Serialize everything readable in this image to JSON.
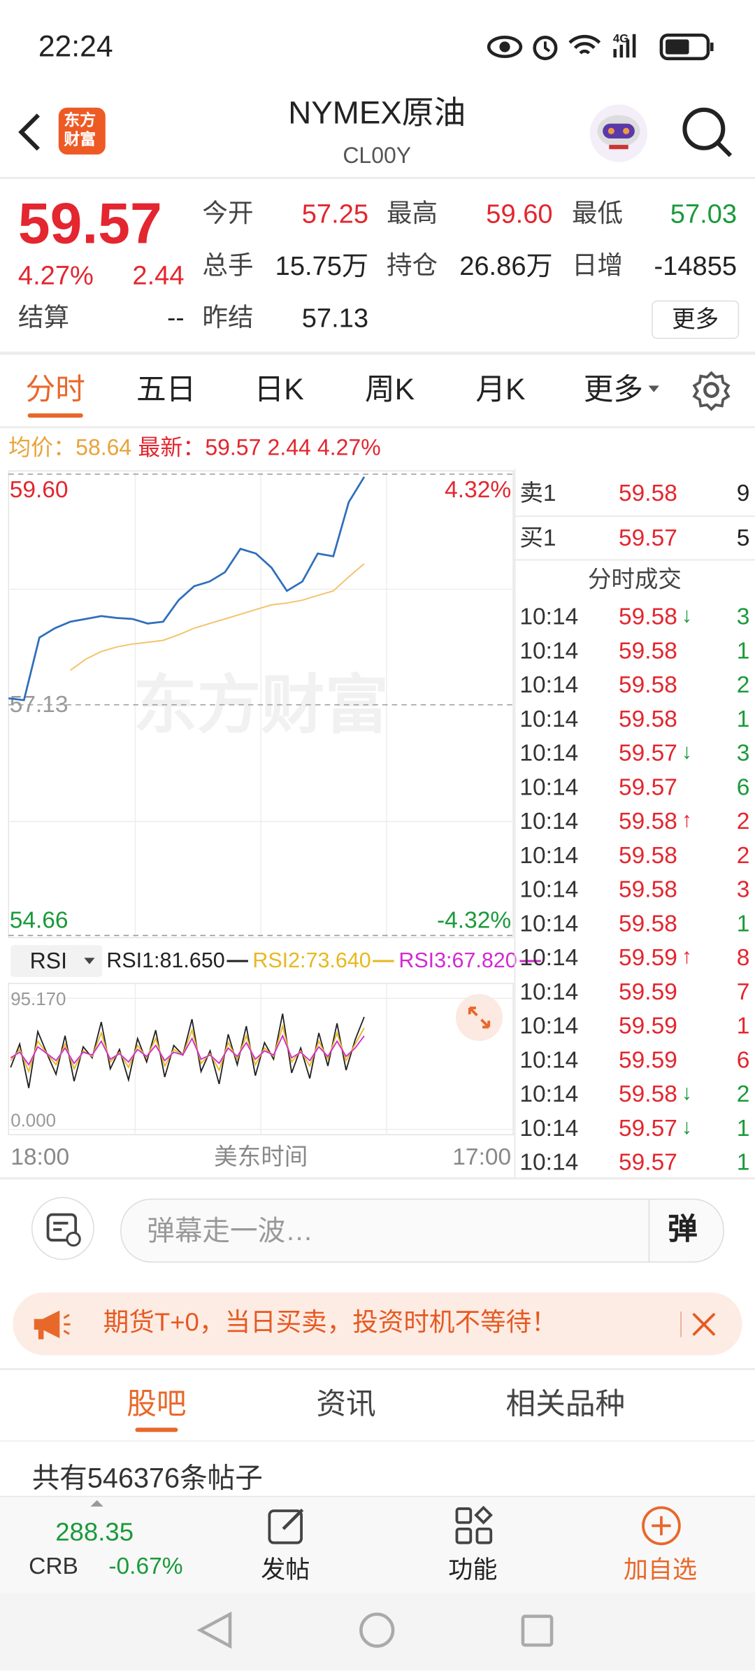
{
  "status_bar": {
    "time": "22:24",
    "network": "4G"
  },
  "header": {
    "logo": [
      "东方",
      "财富"
    ],
    "title": "NYMEX原油",
    "code": "CL00Y"
  },
  "quote": {
    "price": "59.57",
    "change_pct": "4.27%",
    "change": "2.44",
    "settlement": {
      "label": "结算",
      "value": "--"
    },
    "open": {
      "label": "今开",
      "value": "57.25"
    },
    "high": {
      "label": "最高",
      "value": "59.60"
    },
    "low": {
      "label": "最低",
      "value": "57.03"
    },
    "volume": {
      "label": "总手",
      "value": "15.75万"
    },
    "open_interest": {
      "label": "持仓",
      "value": "26.86万"
    },
    "daily_change": {
      "label": "日增",
      "value": "-14855"
    },
    "prev_settlement": {
      "label": "昨结",
      "value": "57.13"
    },
    "more": "更多"
  },
  "tabs": {
    "items": [
      "分时",
      "五日",
      "日K",
      "周K",
      "月K",
      "更多"
    ],
    "active": 0
  },
  "summary": {
    "avg_label": "均价：",
    "avg": "58.64",
    "last_label": "最新：",
    "last": "59.57",
    "change": "2.44",
    "change_pct": "4.27%"
  },
  "price_chart": {
    "type": "line",
    "watermark": "东方财富",
    "series": [
      {
        "color": "#2f6fba",
        "values": [
          57.2,
          57.18,
          57.85,
          57.95,
          58.02,
          58.05,
          58.08,
          58.06,
          58.05,
          58.0,
          58.02,
          58.25,
          58.4,
          58.45,
          58.55,
          58.8,
          58.75,
          58.6,
          58.35,
          58.45,
          58.75,
          58.72,
          59.3,
          59.57
        ]
      },
      {
        "color": "#f2c46b",
        "values": [
          null,
          null,
          null,
          null,
          57.5,
          57.62,
          57.7,
          57.75,
          57.78,
          57.8,
          57.82,
          57.88,
          57.95,
          58.0,
          58.05,
          58.1,
          58.15,
          58.2,
          58.22,
          58.25,
          58.3,
          58.35,
          58.5,
          58.64
        ]
      }
    ],
    "ylim": [
      54.66,
      59.6
    ],
    "yticks": [
      {
        "value": 59.6,
        "label": "59.60"
      },
      57.13,
      54.66
    ],
    "y2lim": [
      -4.32,
      4.32
    ],
    "y2ticks": [
      {
        "value": 4.32,
        "label": "4.32%"
      },
      {
        "value": -4.32,
        "label": "-4.32%"
      }
    ]
  },
  "rsi_chart": {
    "type": "line",
    "indicator": "RSI",
    "series": [
      {
        "name": "RSI1:81.650",
        "color": "#222222",
        "values": [
          45,
          62,
          30,
          71,
          55,
          40,
          68,
          35,
          60,
          52,
          78,
          44,
          58,
          36,
          66,
          49,
          72,
          38,
          61,
          54,
          80,
          42,
          57,
          33,
          69,
          47,
          75,
          39,
          63,
          51,
          84,
          41,
          59,
          37,
          70,
          46,
          77,
          43,
          65,
          81.65
        ]
      },
      {
        "name": "RSI2:73.640",
        "color": "#e8b820",
        "values": [
          50,
          58,
          42,
          64,
          55,
          47,
          62,
          44,
          57,
          53,
          70,
          49,
          56,
          45,
          61,
          52,
          66,
          46,
          58,
          54,
          72,
          48,
          55,
          43,
          63,
          51,
          68,
          47,
          59,
          53,
          75,
          49,
          57,
          46,
          64,
          51,
          70,
          50,
          62,
          73.64
        ]
      },
      {
        "name": "RSI3:67.820",
        "color": "#d22ad2",
        "values": [
          52,
          56,
          47,
          60,
          55,
          50,
          59,
          48,
          56,
          54,
          64,
          51,
          55,
          49,
          58,
          53,
          61,
          50,
          56,
          54,
          66,
          51,
          54,
          48,
          59,
          53,
          63,
          51,
          57,
          54,
          68,
          52,
          56,
          50,
          60,
          53,
          64,
          53,
          59,
          67.82
        ]
      }
    ],
    "ylim": [
      0,
      95.17
    ],
    "yticks": [
      {
        "value": 95.17,
        "label": "95.170"
      },
      {
        "value": 0,
        "label": "0.000"
      }
    ]
  },
  "time_axis": {
    "start": "18:00",
    "label": "美东时间",
    "end": "17:00"
  },
  "order_book": [
    {
      "side": "卖1",
      "price": "59.58",
      "volume": "9"
    },
    {
      "side": "买1",
      "price": "59.57",
      "volume": "5"
    }
  ],
  "trades_title": "分时成交",
  "trades": [
    {
      "time": "10:14",
      "price": "59.58",
      "arrow": "↓",
      "arrow_color": "green",
      "volume": "3",
      "volume_color": "green"
    },
    {
      "time": "10:14",
      "price": "59.58",
      "volume": "1",
      "volume_color": "green"
    },
    {
      "time": "10:14",
      "price": "59.58",
      "volume": "2",
      "volume_color": "green"
    },
    {
      "time": "10:14",
      "price": "59.58",
      "volume": "1",
      "volume_color": "green"
    },
    {
      "time": "10:14",
      "price": "59.57",
      "arrow": "↓",
      "arrow_color": "green",
      "volume": "3",
      "volume_color": "green"
    },
    {
      "time": "10:14",
      "price": "59.57",
      "volume": "6",
      "volume_color": "green"
    },
    {
      "time": "10:14",
      "price": "59.58",
      "arrow": "↑",
      "arrow_color": "red",
      "volume": "2",
      "volume_color": "red"
    },
    {
      "time": "10:14",
      "price": "59.58",
      "volume": "2",
      "volume_color": "red"
    },
    {
      "time": "10:14",
      "price": "59.58",
      "volume": "3",
      "volume_color": "red"
    },
    {
      "time": "10:14",
      "price": "59.58",
      "volume": "1",
      "volume_color": "green"
    },
    {
      "time": "10:14",
      "price": "59.59",
      "arrow": "↑",
      "arrow_color": "red",
      "volume": "8",
      "volume_color": "red"
    },
    {
      "time": "10:14",
      "price": "59.59",
      "volume": "7",
      "volume_color": "red"
    },
    {
      "time": "10:14",
      "price": "59.59",
      "volume": "1",
      "volume_color": "red"
    },
    {
      "time": "10:14",
      "price": "59.59",
      "volume": "6",
      "volume_color": "red"
    },
    {
      "time": "10:14",
      "price": "59.58",
      "arrow": "↓",
      "arrow_color": "green",
      "volume": "2",
      "volume_color": "green"
    },
    {
      "time": "10:14",
      "price": "59.57",
      "arrow": "↓",
      "arrow_color": "green",
      "volume": "1",
      "volume_color": "green"
    },
    {
      "time": "10:14",
      "price": "59.57",
      "volume": "1",
      "volume_color": "green"
    }
  ],
  "comment_bar": {
    "placeholder": "弹幕走一波…",
    "button": "弹"
  },
  "banner": {
    "text": "期货T+0，当日买卖，投资时机不等待！"
  },
  "community_tabs": {
    "items": [
      "股吧",
      "资讯",
      "相关品种"
    ],
    "active": 0
  },
  "post_count": "共有546376条帖子",
  "bottom_bar": {
    "index_value": "288.35",
    "index_name": "CRB",
    "index_change": "-0.67%",
    "actions": [
      "发帖",
      "功能",
      "加自选"
    ]
  }
}
